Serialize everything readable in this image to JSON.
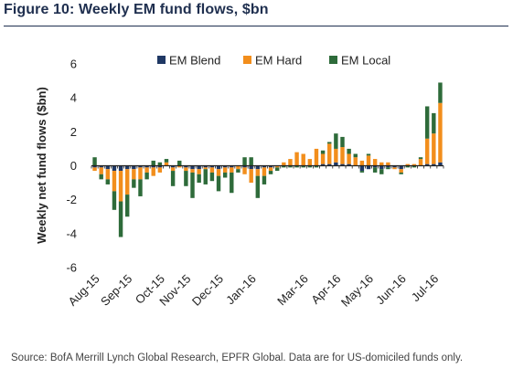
{
  "figure": {
    "title": "Figure 10: Weekly EM fund flows, $bn",
    "source": "Source: BofA Merrill Lynch Global Research, EPFR Global. Data are for US-domiciled funds only."
  },
  "colors": {
    "EM Blend": "#1f3864",
    "EM Hard": "#f28e1c",
    "EM Local": "#2e6b3a",
    "title": "#1f2f4f"
  },
  "chart_data": {
    "type": "bar",
    "stacked": true,
    "ylabel": "Weekly net fund flows ($bn)",
    "xlabel": "",
    "ylim": [
      -6,
      6
    ],
    "yticks": [
      6,
      4,
      2,
      0,
      -2,
      -4,
      -6
    ],
    "x_tick_labels": [
      "Aug-15",
      "Sep-15",
      "Oct-15",
      "Nov-15",
      "Dec-15",
      "Jan-16",
      "Mar-16",
      "Apr-16",
      "May-16",
      "Jun-16",
      "Jul-16"
    ],
    "x_tick_week_index": [
      0,
      5,
      10,
      14,
      19,
      24,
      32,
      37,
      42,
      47,
      52
    ],
    "legend": {
      "position": "top-center",
      "entries": [
        "EM Blend",
        "EM Hard",
        "EM Local"
      ]
    },
    "categories": [
      "Aug-15 wk1",
      "wk2",
      "wk3",
      "wk4",
      "Sep-15 wk1",
      "wk2",
      "wk3",
      "wk4",
      "wk5",
      "Oct-15 wk1",
      "wk2",
      "wk3",
      "wk4",
      "wk5",
      "Nov-15 wk1",
      "wk2",
      "wk3",
      "wk4",
      "Dec-15 wk1",
      "wk2",
      "wk3",
      "wk4",
      "wk5",
      "Jan-16 wk1",
      "wk2",
      "wk3",
      "wk4",
      "Feb-16 wk1",
      "wk2",
      "wk3",
      "wk4",
      "wk5",
      "Mar-16 wk1",
      "wk2",
      "wk3",
      "wk4",
      "wk5",
      "Apr-16 wk1",
      "wk2",
      "wk3",
      "wk4",
      "May-16 wk1",
      "wk2",
      "wk3",
      "wk4",
      "wk5",
      "Jun-16 wk1",
      "wk2",
      "wk3",
      "wk4",
      "wk5",
      "Jul-16 wk1",
      "wk2",
      "wk3"
    ],
    "series": [
      {
        "name": "EM Blend",
        "values": [
          -0.1,
          -0.1,
          -0.2,
          -0.3,
          -0.3,
          -0.2,
          -0.2,
          -0.1,
          -0.1,
          -0.1,
          -0.1,
          0.0,
          -0.1,
          0.0,
          -0.1,
          -0.2,
          -0.2,
          -0.1,
          -0.1,
          -0.2,
          -0.1,
          -0.1,
          0.0,
          -0.1,
          -0.2,
          -0.2,
          -0.1,
          -0.1,
          0.0,
          0.0,
          0.0,
          0.0,
          0.0,
          0.0,
          0.0,
          0.1,
          0.1,
          0.2,
          0.1,
          0.1,
          0.0,
          -0.3,
          -0.2,
          -0.1,
          -0.2,
          -0.1,
          -0.1,
          -0.2,
          0.0,
          0.0,
          0.0,
          0.1,
          0.1,
          0.2
        ]
      },
      {
        "name": "EM Hard",
        "values": [
          -0.2,
          -0.4,
          -0.6,
          -1.2,
          -1.8,
          -1.5,
          -0.6,
          -0.7,
          -0.3,
          -0.5,
          -0.3,
          0.2,
          -0.2,
          -0.1,
          -0.2,
          -0.2,
          -0.3,
          -0.1,
          -0.3,
          -0.4,
          -0.3,
          -0.3,
          -0.2,
          -0.4,
          -0.8,
          -0.4,
          -0.5,
          -0.2,
          -0.1,
          0.2,
          0.4,
          0.8,
          0.7,
          0.4,
          1.0,
          0.6,
          1.2,
          0.8,
          1.0,
          0.6,
          0.5,
          0.3,
          0.6,
          0.4,
          0.2,
          0.2,
          -0.1,
          -0.2,
          0.1,
          0.1,
          0.4,
          1.5,
          1.8,
          3.5
        ]
      },
      {
        "name": "EM Local",
        "values": [
          0.5,
          -0.3,
          -0.3,
          -1.1,
          -2.1,
          -1.3,
          -0.5,
          -1.0,
          -0.4,
          0.3,
          0.2,
          0.2,
          -0.9,
          0.3,
          -0.9,
          -1.5,
          -0.5,
          -0.9,
          -0.5,
          -0.9,
          -0.3,
          -1.2,
          -0.2,
          0.5,
          0.5,
          -1.3,
          -0.5,
          -0.2,
          -0.2,
          -0.1,
          -0.1,
          -0.1,
          -0.1,
          -0.1,
          -0.1,
          0.2,
          0.1,
          0.9,
          0.6,
          0.3,
          0.2,
          -0.1,
          0.1,
          -0.3,
          -0.3,
          -0.1,
          0.0,
          -0.1,
          -0.1,
          -0.1,
          0.1,
          1.9,
          1.2,
          1.2
        ]
      }
    ]
  }
}
